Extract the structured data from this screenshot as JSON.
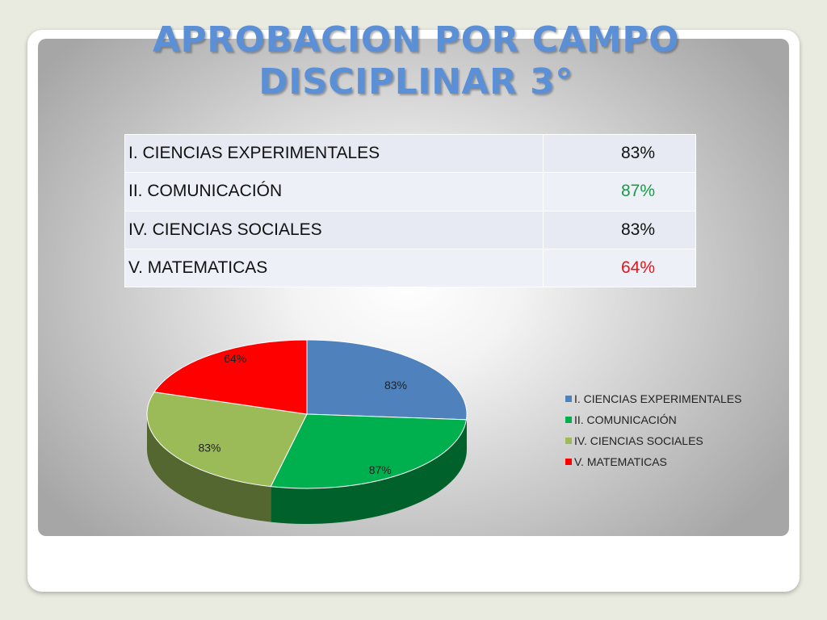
{
  "title": "APROBACION POR CAMPO DISCIPLINAR 3°",
  "table": {
    "rows": [
      {
        "label": "I. CIENCIAS EXPERIMENTALES",
        "value": "83%",
        "color": "#111111"
      },
      {
        "label": "II. COMUNICACIÓN",
        "value": "87%",
        "color": "#1a9a48"
      },
      {
        "label": "IV. CIENCIAS SOCIALES",
        "value": "83%",
        "color": "#111111"
      },
      {
        "label": "V. MATEMATICAS",
        "value": "64%",
        "color": "#e0151b"
      }
    ]
  },
  "chart_data": {
    "type": "pie",
    "style": "3d",
    "legend_position": "right",
    "categories": [
      "I. CIENCIAS EXPERIMENTALES",
      "II. COMUNICACIÓN",
      "IV. CIENCIAS SOCIALES",
      "V. MATEMATICAS"
    ],
    "values": [
      83,
      87,
      83,
      64
    ],
    "data_labels": [
      "83%",
      "87%",
      "83%",
      "64%"
    ],
    "colors": [
      "#4f81bd",
      "#00b04f",
      "#9bbb59",
      "#ff0000"
    ]
  }
}
